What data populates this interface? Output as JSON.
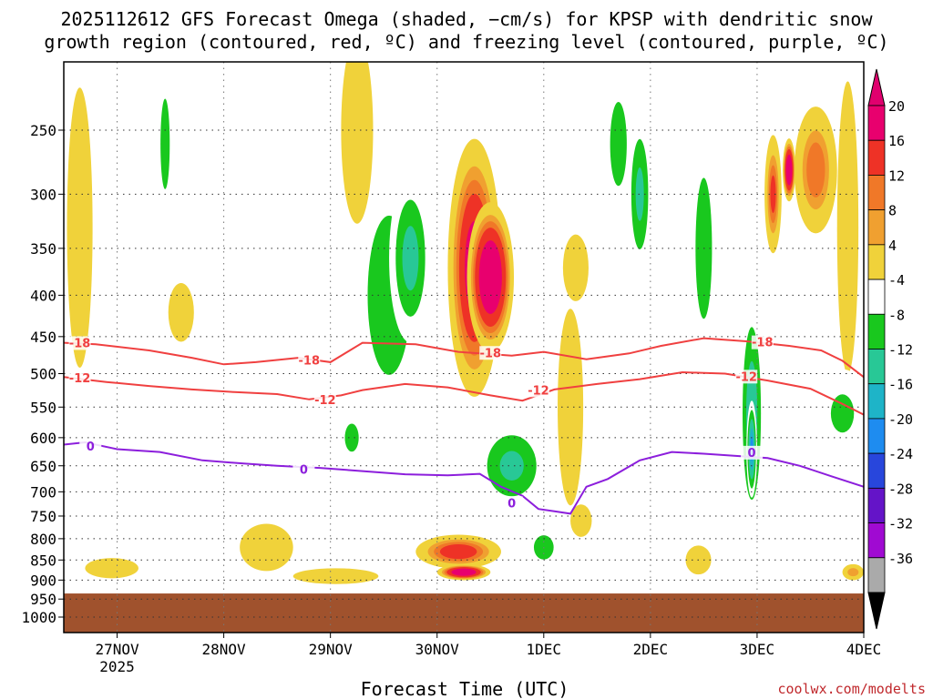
{
  "chart_data": {
    "type": "heatmap",
    "title_lines": [
      "2025112612 GFS Forecast Omega (shaded, −cm/s) for KPSP with dendritic snow",
      "growth region (contoured, red, ºC) and freezing level (contoured, purple, ºC)"
    ],
    "xlabel": "Forecast Time (UTC)",
    "ylabel": "",
    "x_ticks": [
      {
        "t": 0.5,
        "label": "27NOV",
        "sub": "2025"
      },
      {
        "t": 1.5,
        "label": "28NOV",
        "sub": ""
      },
      {
        "t": 2.5,
        "label": "29NOV",
        "sub": ""
      },
      {
        "t": 3.5,
        "label": "30NOV",
        "sub": ""
      },
      {
        "t": 4.5,
        "label": "1DEC",
        "sub": ""
      },
      {
        "t": 5.5,
        "label": "2DEC",
        "sub": ""
      },
      {
        "t": 6.5,
        "label": "3DEC",
        "sub": ""
      },
      {
        "t": 7.5,
        "label": "4DEC",
        "sub": ""
      }
    ],
    "x_range": [
      0,
      7.5
    ],
    "y_ticks": [
      250,
      300,
      350,
      400,
      450,
      500,
      550,
      600,
      650,
      700,
      750,
      800,
      850,
      900,
      950,
      1000
    ],
    "y_range": [
      200,
      1030
    ],
    "surface_pressure": 935,
    "colorbar": {
      "levels": [
        -36,
        -32,
        -28,
        -24,
        -20,
        -16,
        -12,
        -8,
        -4,
        4,
        8,
        12,
        16,
        20
      ],
      "labels": [
        "20",
        "16",
        "12",
        "8",
        "4",
        "-4",
        "-8",
        "-12",
        "-16",
        "-20",
        "-24",
        "-28",
        "-32",
        "-36"
      ],
      "colors_top_to_bottom": [
        "#e8006e",
        "#ee3226",
        "#f07828",
        "#f0a030",
        "#f0d23a",
        "#ffffff",
        "#19c81e",
        "#28c896",
        "#1eb4c8",
        "#1e8cf0",
        "#2846dc",
        "#6414c8",
        "#a00ad2",
        "#aaaaaa"
      ],
      "top_arrow_color": "#e0006e",
      "bottom_arrow_color": "#000000"
    },
    "contours": [
      {
        "name": "-18",
        "color": "#f04040",
        "label": "-18",
        "t": [
          0,
          0.3,
          0.8,
          1.2,
          1.5,
          1.8,
          2.2,
          2.5,
          2.8,
          3.3,
          3.7,
          4.2,
          4.5,
          4.9,
          5.3,
          5.6,
          6.0,
          6.4,
          6.8,
          7.1,
          7.3,
          7.5
        ],
        "p": [
          458,
          460,
          468,
          478,
          487,
          484,
          478,
          484,
          458,
          460,
          470,
          475,
          470,
          480,
          472,
          462,
          452,
          456,
          462,
          468,
          482,
          505
        ],
        "label_t": [
          0.15,
          2.3,
          4.0,
          6.55
        ],
        "label_p": [
          459,
          482,
          472,
          458
        ]
      },
      {
        "name": "-12",
        "color": "#f04040",
        "label": "-12",
        "t": [
          0,
          0.4,
          0.8,
          1.2,
          1.6,
          2.0,
          2.3,
          2.6,
          2.8,
          3.2,
          3.6,
          4.0,
          4.3,
          4.6,
          5.0,
          5.4,
          5.8,
          6.2,
          6.6,
          7.0,
          7.3,
          7.5
        ],
        "p": [
          505,
          512,
          518,
          523,
          527,
          530,
          538,
          532,
          524,
          515,
          520,
          532,
          540,
          523,
          515,
          508,
          498,
          500,
          510,
          522,
          545,
          562
        ],
        "label_t": [
          0.15,
          2.45,
          4.45,
          6.4
        ],
        "label_p": [
          507,
          540,
          525,
          505
        ]
      },
      {
        "name": "0",
        "color": "#8c1edc",
        "label": "0",
        "t": [
          0,
          0.2,
          0.5,
          0.9,
          1.3,
          1.7,
          2.0,
          2.4,
          2.8,
          3.2,
          3.6,
          3.9,
          4.1,
          4.3,
          4.45,
          4.6,
          4.75,
          4.9,
          5.1,
          5.4,
          5.7,
          6.0,
          6.3,
          6.6,
          6.9,
          7.2,
          7.5
        ],
        "p": [
          612,
          608,
          620,
          625,
          640,
          646,
          650,
          654,
          660,
          666,
          668,
          665,
          690,
          708,
          735,
          740,
          745,
          690,
          675,
          640,
          625,
          628,
          632,
          636,
          650,
          670,
          690
        ],
        "label_t": [
          0.25,
          2.25,
          4.2,
          6.45
        ],
        "label_p": [
          616,
          658,
          724,
          627
        ]
      }
    ],
    "omega_blobs": [
      {
        "t": 3.85,
        "p": 370,
        "dt": 0.25,
        "dp": 260,
        "v": 18
      },
      {
        "t": 4.0,
        "p": 380,
        "dt": 0.22,
        "dp": 160,
        "v": 22
      },
      {
        "t": 3.7,
        "p": 830,
        "dt": 0.4,
        "dp": 80,
        "v": 14
      },
      {
        "t": 3.75,
        "p": 880,
        "dt": 0.25,
        "dp": 40,
        "v": 21
      },
      {
        "t": 3.05,
        "p": 400,
        "dt": 0.35,
        "dp": 300,
        "v": -10
      },
      {
        "t": 3.25,
        "p": 360,
        "dt": 0.2,
        "dp": 170,
        "v": -13
      },
      {
        "t": 4.2,
        "p": 650,
        "dt": 0.35,
        "dp": 170,
        "v": -12
      },
      {
        "t": 6.45,
        "p": 560,
        "dt": 0.12,
        "dp": 370,
        "v": -14
      },
      {
        "t": 6.45,
        "p": 620,
        "dt": 0.05,
        "dp": 170,
        "v": -20
      },
      {
        "t": 6.65,
        "p": 300,
        "dt": 0.08,
        "dp": 100,
        "v": 12
      },
      {
        "t": 6.8,
        "p": 280,
        "dt": 0.06,
        "dp": 50,
        "v": 22
      },
      {
        "t": 7.05,
        "p": 280,
        "dt": 0.2,
        "dp": 100,
        "v": 11
      },
      {
        "t": 7.35,
        "p": 330,
        "dt": 0.1,
        "dp": 260,
        "v": 5
      },
      {
        "t": 5.2,
        "p": 260,
        "dt": 0.18,
        "dp": 140,
        "v": -8
      },
      {
        "t": 5.4,
        "p": 300,
        "dt": 0.12,
        "dp": 140,
        "v": -12
      },
      {
        "t": 6.0,
        "p": 350,
        "dt": 0.15,
        "dp": 260,
        "v": -9
      },
      {
        "t": 0.95,
        "p": 260,
        "dt": 0.1,
        "dp": 150,
        "v": -8
      },
      {
        "t": 0.15,
        "p": 330,
        "dt": 0.12,
        "dp": 250,
        "v": 5
      },
      {
        "t": 2.75,
        "p": 250,
        "dt": 0.15,
        "dp": 130,
        "v": 6
      },
      {
        "t": 2.7,
        "p": 600,
        "dt": 0.15,
        "dp": 110,
        "v": -8
      },
      {
        "t": 2.55,
        "p": 890,
        "dt": 0.4,
        "dp": 40,
        "v": 5
      },
      {
        "t": 4.75,
        "p": 550,
        "dt": 0.12,
        "dp": 300,
        "v": 5
      },
      {
        "t": 4.85,
        "p": 760,
        "dt": 0.1,
        "dp": 70,
        "v": 5
      },
      {
        "t": 7.3,
        "p": 560,
        "dt": 0.25,
        "dp": 140,
        "v": -8
      },
      {
        "t": 7.4,
        "p": 880,
        "dt": 0.1,
        "dp": 40,
        "v": 9
      },
      {
        "t": 0.45,
        "p": 870,
        "dt": 0.25,
        "dp": 50,
        "v": 5
      },
      {
        "t": 1.9,
        "p": 820,
        "dt": 0.25,
        "dp": 110,
        "v": 5
      },
      {
        "t": 5.95,
        "p": 850,
        "dt": 0.12,
        "dp": 70,
        "v": 5
      },
      {
        "t": 4.8,
        "p": 370,
        "dt": 0.12,
        "dp": 70,
        "v": 6
      },
      {
        "t": 1.1,
        "p": 420,
        "dt": 0.12,
        "dp": 70,
        "v": 5
      },
      {
        "t": 4.5,
        "p": 820,
        "dt": 0.18,
        "dp": 110,
        "v": -9
      }
    ]
  },
  "credit": "coolwx.com/modelts"
}
